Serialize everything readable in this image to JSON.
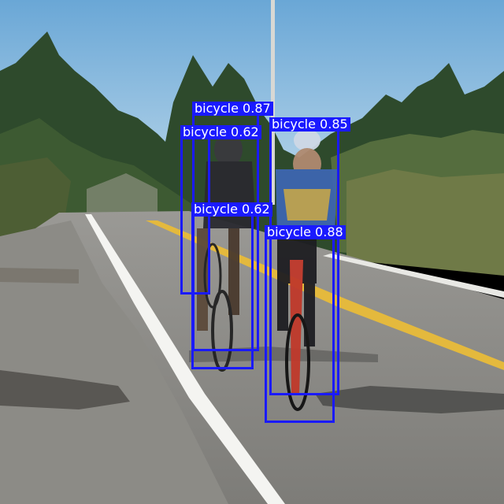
{
  "detections": [
    {
      "label": "bicycle",
      "score": "0.87"
    },
    {
      "label": "bicycle",
      "score": "0.62"
    },
    {
      "label": "bicycle",
      "score": "0.85"
    },
    {
      "label": "bicycle",
      "score": "0.62"
    },
    {
      "label": "bicycle",
      "score": "0.88"
    }
  ],
  "colors": {
    "box": "#1a1aff",
    "sky": "#a9cfe8",
    "road": "#8d8c88",
    "trees": "#2f4a2a",
    "center_line": "#e4b93d"
  }
}
